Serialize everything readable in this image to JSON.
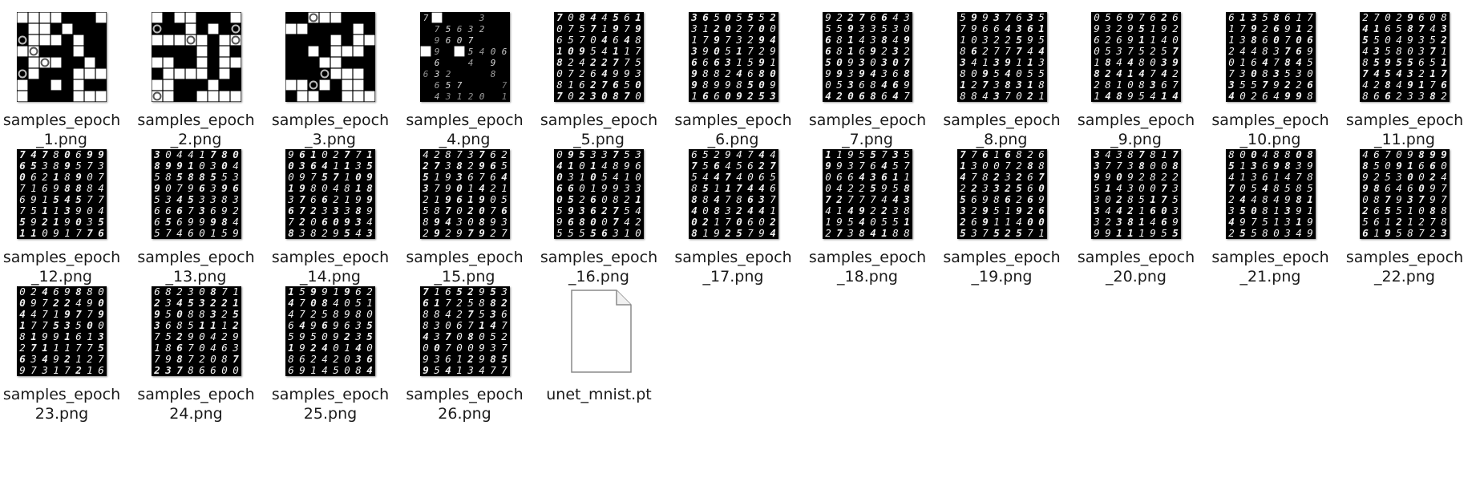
{
  "colors": {
    "background": "#ffffff",
    "label_text": "#1a1a1a",
    "thumbnail_bg": "#000000",
    "digit_ink": "#f2f2f2",
    "file_icon_fill": "#ffffff",
    "file_icon_stroke": "#8a8a8a"
  },
  "files": [
    {
      "name": "samples_epoch\n_1.png",
      "icon": "grid-image-thumbnail"
    },
    {
      "name": "samples_epoch\n_2.png",
      "icon": "grid-image-thumbnail"
    },
    {
      "name": "samples_epoch\n_3.png",
      "icon": "grid-image-thumbnail"
    },
    {
      "name": "samples_epoch\n_4.png",
      "icon": "sparse-digits-thumbnail"
    },
    {
      "name": "samples_epoch\n_5.png",
      "icon": "digits-thumbnail"
    },
    {
      "name": "samples_epoch\n_6.png",
      "icon": "digits-thumbnail"
    },
    {
      "name": "samples_epoch\n_7.png",
      "icon": "digits-thumbnail"
    },
    {
      "name": "samples_epoch\n_8.png",
      "icon": "digits-thumbnail"
    },
    {
      "name": "samples_epoch\n_9.png",
      "icon": "digits-thumbnail"
    },
    {
      "name": "samples_epoch\n_10.png",
      "icon": "digits-thumbnail"
    },
    {
      "name": "samples_epoch\n_11.png",
      "icon": "digits-thumbnail"
    },
    {
      "name": "samples_epoch\n_12.png",
      "icon": "digits-thumbnail"
    },
    {
      "name": "samples_epoch\n_13.png",
      "icon": "digits-thumbnail"
    },
    {
      "name": "samples_epoch\n_14.png",
      "icon": "digits-thumbnail"
    },
    {
      "name": "samples_epoch\n_15.png",
      "icon": "digits-thumbnail"
    },
    {
      "name": "samples_epoch\n_16.png",
      "icon": "digits-thumbnail"
    },
    {
      "name": "samples_epoch\n_17.png",
      "icon": "digits-thumbnail"
    },
    {
      "name": "samples_epoch\n_18.png",
      "icon": "digits-thumbnail"
    },
    {
      "name": "samples_epoch\n_19.png",
      "icon": "digits-thumbnail"
    },
    {
      "name": "samples_epoch\n_20.png",
      "icon": "digits-thumbnail"
    },
    {
      "name": "samples_epoch\n_21.png",
      "icon": "digits-thumbnail"
    },
    {
      "name": "samples_epoch\n_22.png",
      "icon": "digits-thumbnail"
    },
    {
      "name": "samples_epoch\n23.png",
      "icon": "digits-thumbnail"
    },
    {
      "name": "samples_epoch\n24.png",
      "icon": "digits-thumbnail"
    },
    {
      "name": "samples_epoch\n25.png",
      "icon": "digits-thumbnail"
    },
    {
      "name": "samples_epoch\n26.png",
      "icon": "digits-thumbnail"
    },
    {
      "name": "unet_mnist.pt",
      "icon": "generic-file-icon"
    }
  ]
}
